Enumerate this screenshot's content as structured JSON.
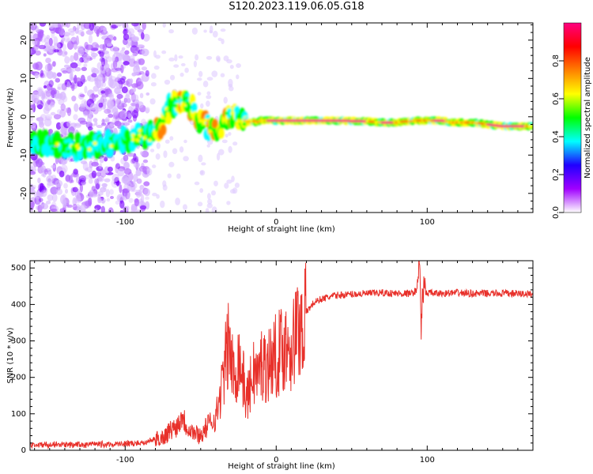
{
  "title": "S120.2023.119.06.05.G18",
  "chart_data": [
    {
      "type": "heatmap",
      "xlabel": "Height of straight line (km)",
      "ylabel": "Frequency (Hz)",
      "xlim": [
        -163,
        170
      ],
      "ylim": [
        -25,
        24.5
      ],
      "x_ticks": [
        -100,
        0,
        100
      ],
      "x_tick_labels": [
        "-100",
        "0",
        "100"
      ],
      "y_ticks": [
        -20,
        -10,
        0,
        10,
        20
      ],
      "y_tick_labels": [
        "-20",
        "-10",
        "0",
        "10",
        "20"
      ],
      "ridge": {
        "x": [
          -150,
          -140,
          -130,
          -120,
          -110,
          -100,
          -95,
          -90,
          -85,
          -82,
          -78,
          -75,
          -72,
          -70,
          -65,
          -60,
          -55,
          -50,
          -45,
          -40,
          -37,
          -35,
          -32,
          -30,
          -28,
          -25,
          -22,
          -20,
          -18,
          -15,
          -13,
          -10,
          -5,
          0,
          20,
          40,
          60,
          70,
          75,
          80,
          85,
          88,
          92,
          95,
          100,
          105,
          110,
          115,
          120,
          130,
          140,
          150,
          160,
          170
        ],
        "y": [
          -7,
          -7.5,
          -8,
          -7.5,
          -7,
          -6,
          -5.5,
          -5,
          -5,
          -4.5,
          -3,
          -1.5,
          1,
          3,
          3.5,
          4,
          2,
          -1,
          -2.5,
          -3.5,
          -3,
          -1,
          0.5,
          0.5,
          0.2,
          0,
          -0.5,
          -1,
          -1.5,
          -1,
          -1.5,
          -1,
          -1,
          -1,
          -1,
          -1,
          -1.2,
          -1.5,
          -1.5,
          -1.5,
          -1.2,
          -1.2,
          -1,
          -1,
          -1,
          -1,
          -1,
          -1.5,
          -1.5,
          -1.5,
          -2,
          -2.5,
          -2.5,
          -2.5
        ]
      },
      "colorbar": {
        "label": "Normalized spectral amplitude",
        "range": [
          0,
          1
        ],
        "ticks": [
          0.0,
          0.2,
          0.4,
          0.6,
          0.8
        ],
        "tick_labels": [
          "0.0",
          "0.2",
          "0.4",
          "0.6",
          "0.8"
        ],
        "colors": [
          "#ffffff",
          "#a000ff",
          "#2000ff",
          "#00ffff",
          "#00ff00",
          "#ffff00",
          "#ff8000",
          "#ff0000",
          "#ff0080"
        ]
      }
    },
    {
      "type": "line",
      "xlabel": "Height of straight line (km)",
      "ylabel": "SNR (10 * v/v)",
      "xlim": [
        -163,
        170
      ],
      "ylim": [
        0,
        520
      ],
      "x_ticks": [
        -100,
        0,
        100
      ],
      "x_tick_labels": [
        "-100",
        "0",
        "100"
      ],
      "y_ticks": [
        0,
        100,
        200,
        300,
        400,
        500
      ],
      "y_tick_labels": [
        "0",
        "100",
        "200",
        "300",
        "400",
        "500"
      ],
      "color": "#e8302a",
      "series": [
        {
          "x": [
            -163,
            -150,
            -140,
            -130,
            -120,
            -110,
            -100,
            -90,
            -85,
            -80,
            -75,
            -70,
            -65,
            -62,
            -60,
            -55,
            -50,
            -45,
            -40,
            -38,
            -35,
            -33,
            -31,
            -30,
            -28,
            -26,
            -25,
            -22,
            -20,
            -18,
            -15,
            -12,
            -10,
            -8,
            -5,
            -3,
            0,
            2,
            5,
            8,
            10,
            13,
            15,
            18,
            20,
            25,
            30,
            35,
            40,
            50,
            60,
            70,
            80,
            90,
            93,
            95,
            96,
            97,
            98,
            100,
            105,
            110,
            120,
            130,
            140,
            150,
            160,
            170
          ],
          "y": [
            15,
            15,
            15,
            15,
            16,
            16,
            18,
            20,
            25,
            30,
            35,
            55,
            70,
            100,
            70,
            50,
            40,
            70,
            90,
            130,
            200,
            260,
            300,
            250,
            200,
            230,
            260,
            200,
            140,
            160,
            220,
            200,
            240,
            230,
            240,
            250,
            260,
            270,
            280,
            300,
            280,
            320,
            340,
            350,
            380,
            405,
            415,
            420,
            425,
            428,
            430,
            432,
            430,
            430,
            440,
            520,
            330,
            440,
            430,
            432,
            430,
            430,
            432,
            430,
            430,
            430,
            430,
            428
          ]
        }
      ]
    }
  ]
}
